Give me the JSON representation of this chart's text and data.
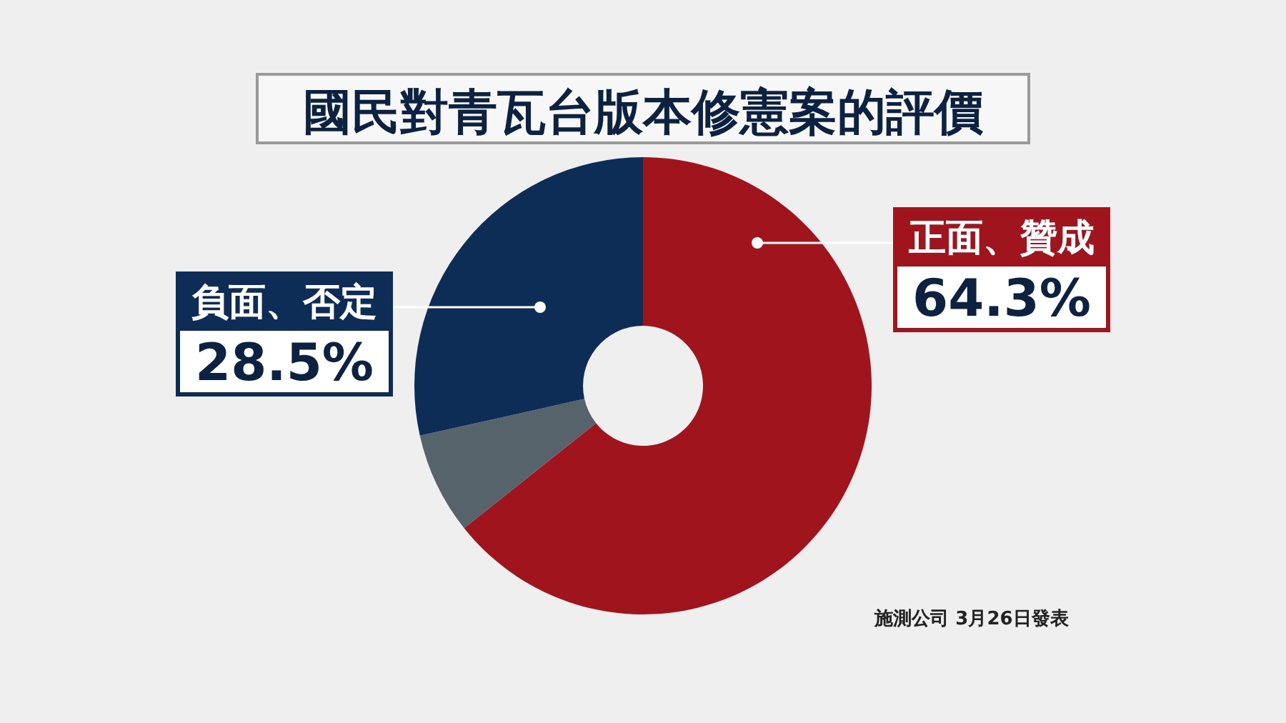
{
  "chart_data": {
    "type": "donut",
    "title": "國民對青瓦台版本修憲案的評價",
    "categories": [
      "正面、贊成",
      null,
      "負面、否定"
    ],
    "values": [
      64.3,
      7.2,
      28.5
    ],
    "value_labels": [
      "64.3%",
      null,
      "28.5%"
    ],
    "colors": [
      "#a0141e",
      "#56636b",
      "#0d2d57"
    ],
    "annotations": [
      "施測公司 3月26日發表"
    ]
  }
}
